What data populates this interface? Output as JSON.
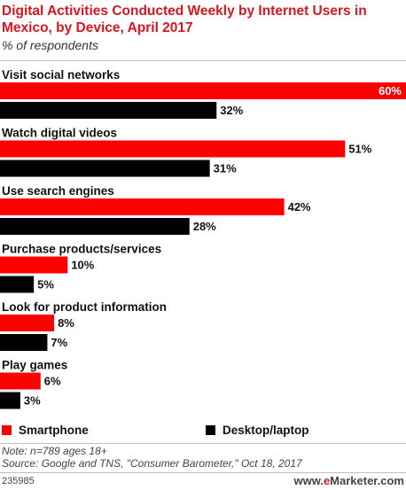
{
  "header": {
    "title": "Digital Activities Conducted Weekly by Internet Users in Mexico, by Device, April 2017",
    "subtitle": "% of respondents"
  },
  "chart_data": {
    "type": "bar",
    "orientation": "horizontal",
    "categories": [
      "Visit social networks",
      "Watch digital videos",
      "Use search engines",
      "Purchase products/services",
      "Look for product information",
      "Play games"
    ],
    "series": [
      {
        "name": "Smartphone",
        "color": "#ff0000",
        "values": [
          60,
          51,
          42,
          10,
          8,
          6
        ]
      },
      {
        "name": "Desktop/laptop",
        "color": "#000000",
        "values": [
          32,
          31,
          28,
          5,
          7,
          3
        ]
      }
    ],
    "value_suffix": "%",
    "xlim": [
      0,
      60
    ],
    "grid": false,
    "legend_position": "bottom"
  },
  "legend": {
    "smartphone": "Smartphone",
    "desktop": "Desktop/laptop"
  },
  "footer": {
    "note": "Note: n=789 ages 18+",
    "source": "Source: Google and TNS, \"Consumer Barometer,\" Oct 18, 2017",
    "chart_id": "235985",
    "brand_prefix": "www.",
    "brand_e": "e",
    "brand_suffix": "Marketer.com"
  }
}
